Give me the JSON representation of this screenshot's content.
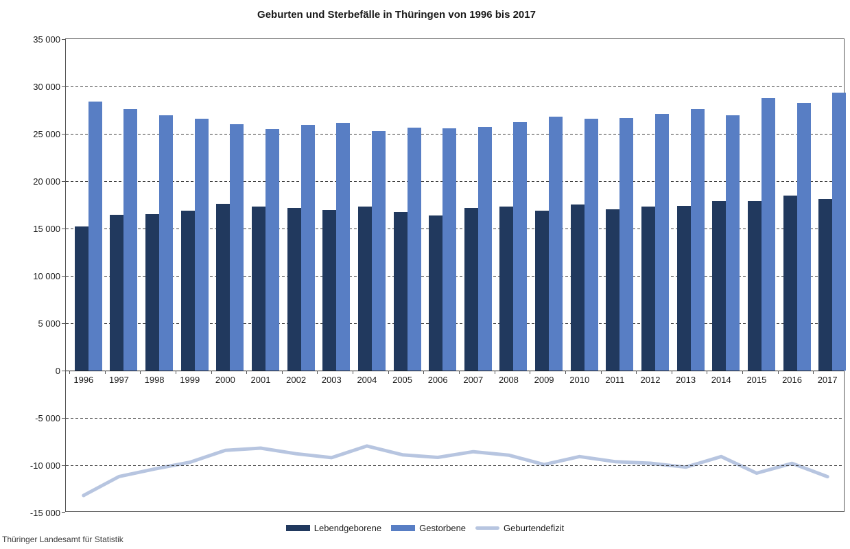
{
  "source": "Thüringer Landesamt für Statistik",
  "chart_data": {
    "type": "bar",
    "subtype": "grouped bars with overlaid line",
    "title": "Geburten und Sterbefälle in Thüringen von 1996 bis 2017",
    "categories": [
      "1996",
      "1997",
      "1998",
      "1999",
      "2000",
      "2001",
      "2002",
      "2003",
      "2004",
      "2005",
      "2006",
      "2007",
      "2008",
      "2009",
      "2010",
      "2011",
      "2012",
      "2013",
      "2014",
      "2015",
      "2016",
      "2017"
    ],
    "series": [
      {
        "name": "Lebendgeborene",
        "type": "bar",
        "color": "#21395E",
        "values": [
          15244,
          16434,
          16538,
          16880,
          17611,
          17291,
          17193,
          16963,
          17310,
          16746,
          16407,
          17184,
          17327,
          16866,
          17537,
          17059,
          17320,
          17425,
          17884,
          17934,
          18475,
          18126
        ]
      },
      {
        "name": "Gestorbene",
        "type": "bar",
        "color": "#587EC4",
        "values": [
          28434,
          27626,
          26928,
          26558,
          26035,
          25480,
          25977,
          26162,
          25276,
          25640,
          25577,
          25748,
          26251,
          26784,
          26614,
          26672,
          27103,
          27621,
          26963,
          28765,
          28271,
          29326
        ]
      },
      {
        "name": "Geburtendefizit",
        "type": "line",
        "color": "#B7C5E0",
        "values": [
          -13190,
          -11192,
          -10390,
          -9678,
          -8424,
          -8189,
          -8784,
          -9199,
          -7966,
          -8894,
          -9170,
          -8564,
          -8924,
          -9918,
          -9077,
          -9613,
          -9783,
          -10196,
          -9079,
          -10831,
          -9796,
          -11200
        ]
      }
    ],
    "xlabel": "",
    "ylabel": "",
    "ylim": [
      -15000,
      35000
    ],
    "ytick_step": 5000,
    "y_tick_labels": [
      "35 000",
      "30 000",
      "25 000",
      "20 000",
      "15 000",
      "10 000",
      "5 000",
      "0",
      "-5 000",
      "-10 000",
      "-15 000"
    ],
    "grid": "horizontal dashed",
    "legend_position": "bottom"
  }
}
